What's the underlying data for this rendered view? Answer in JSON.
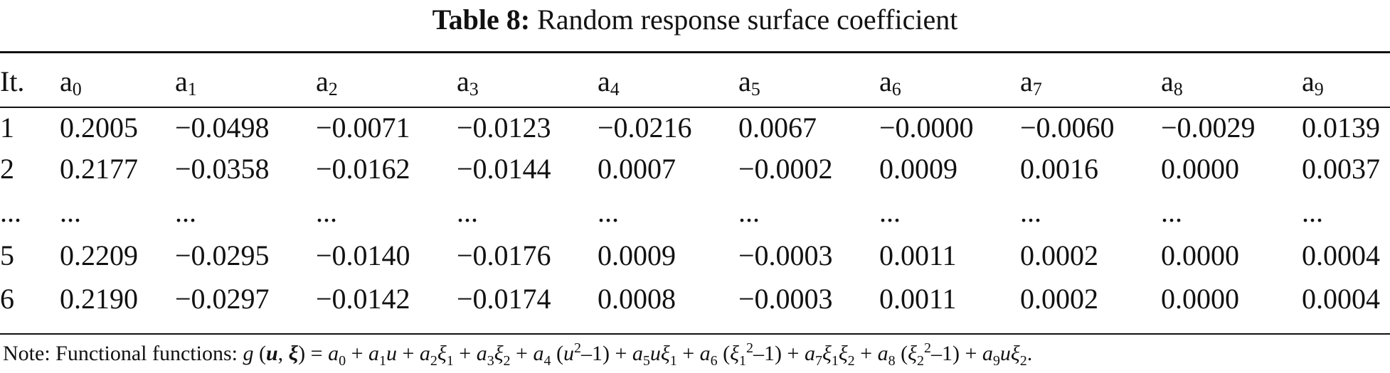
{
  "caption": {
    "label": "Table 8:",
    "title": "Random response surface coefficient"
  },
  "table": {
    "header": {
      "iteration": "It.",
      "coefficients": [
        {
          "base": "a",
          "sub": "0"
        },
        {
          "base": "a",
          "sub": "1"
        },
        {
          "base": "a",
          "sub": "2"
        },
        {
          "base": "a",
          "sub": "3"
        },
        {
          "base": "a",
          "sub": "4"
        },
        {
          "base": "a",
          "sub": "5"
        },
        {
          "base": "a",
          "sub": "6"
        },
        {
          "base": "a",
          "sub": "7"
        },
        {
          "base": "a",
          "sub": "8"
        },
        {
          "base": "a",
          "sub": "9"
        }
      ]
    },
    "rows": [
      {
        "it": "1",
        "values": [
          "0.2005",
          "−0.0498",
          "−0.0071",
          "−0.0123",
          "−0.0216",
          "0.0067",
          "−0.0000",
          "−0.0060",
          "−0.0029",
          "0.0139"
        ]
      },
      {
        "it": "2",
        "values": [
          "0.2177",
          "−0.0358",
          "−0.0162",
          "−0.0144",
          "0.0007",
          "−0.0002",
          "0.0009",
          "0.0016",
          "0.0000",
          "0.0037"
        ]
      },
      {
        "it": "...",
        "values": [
          "...",
          "...",
          "...",
          "...",
          "...",
          "...",
          "...",
          "...",
          "...",
          "..."
        ]
      },
      {
        "it": "5",
        "values": [
          "0.2209",
          "−0.0295",
          "−0.0140",
          "−0.0176",
          "0.0009",
          "−0.0003",
          "0.0011",
          "0.0002",
          "0.0000",
          "0.0004"
        ]
      },
      {
        "it": "6",
        "values": [
          "0.2190",
          "−0.0297",
          "−0.0142",
          "−0.0174",
          "0.0008",
          "−0.0003",
          "0.0011",
          "0.0002",
          "0.0000",
          "0.0004"
        ]
      }
    ]
  },
  "note": {
    "prefix": "Note: Functional functions: "
  }
}
